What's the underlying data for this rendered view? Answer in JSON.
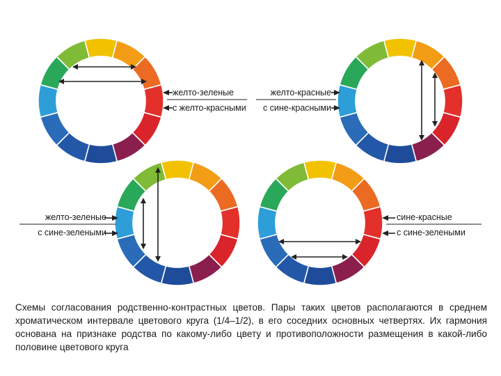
{
  "palette": {
    "segments": [
      "#f2c200",
      "#f39c15",
      "#ec6b22",
      "#e3302a",
      "#d8242a",
      "#8a1f4e",
      "#1e4c9a",
      "#2358a8",
      "#2a6cb8",
      "#2e9ed9",
      "#2aa85a",
      "#7fbb36"
    ],
    "ink": "#222222"
  },
  "wheels": [
    {
      "name": "wheel-top-left",
      "arrows": "horizontal-top"
    },
    {
      "name": "wheel-top-right",
      "arrows": "vertical-right"
    },
    {
      "name": "wheel-bottom-left",
      "arrows": "vertical-left"
    },
    {
      "name": "wheel-bottom-right",
      "arrows": "horizontal-bottom"
    }
  ],
  "labels": {
    "top_left": {
      "line1": "желто-зеленые",
      "line2": "с желто-красными"
    },
    "top_right": {
      "line1": "желто-красные",
      "line2": "с сине-красными"
    },
    "bottom_left": {
      "line1": "желто-зеленые",
      "line2": "с сине-зелеными"
    },
    "bottom_right": {
      "line1": "сине-красные",
      "line2": "с сине-зелеными"
    }
  },
  "caption": "Схемы согласования родственно-контрастных цветов. Пары таких цветов располагаются в среднем хроматическом интервале цветового круга (1/4–1/2), в его соседних основных четвертях. Их гармония основана на признаке родства по какому-либо цвету и противоположности размещения в какой-либо половине цветового круга"
}
